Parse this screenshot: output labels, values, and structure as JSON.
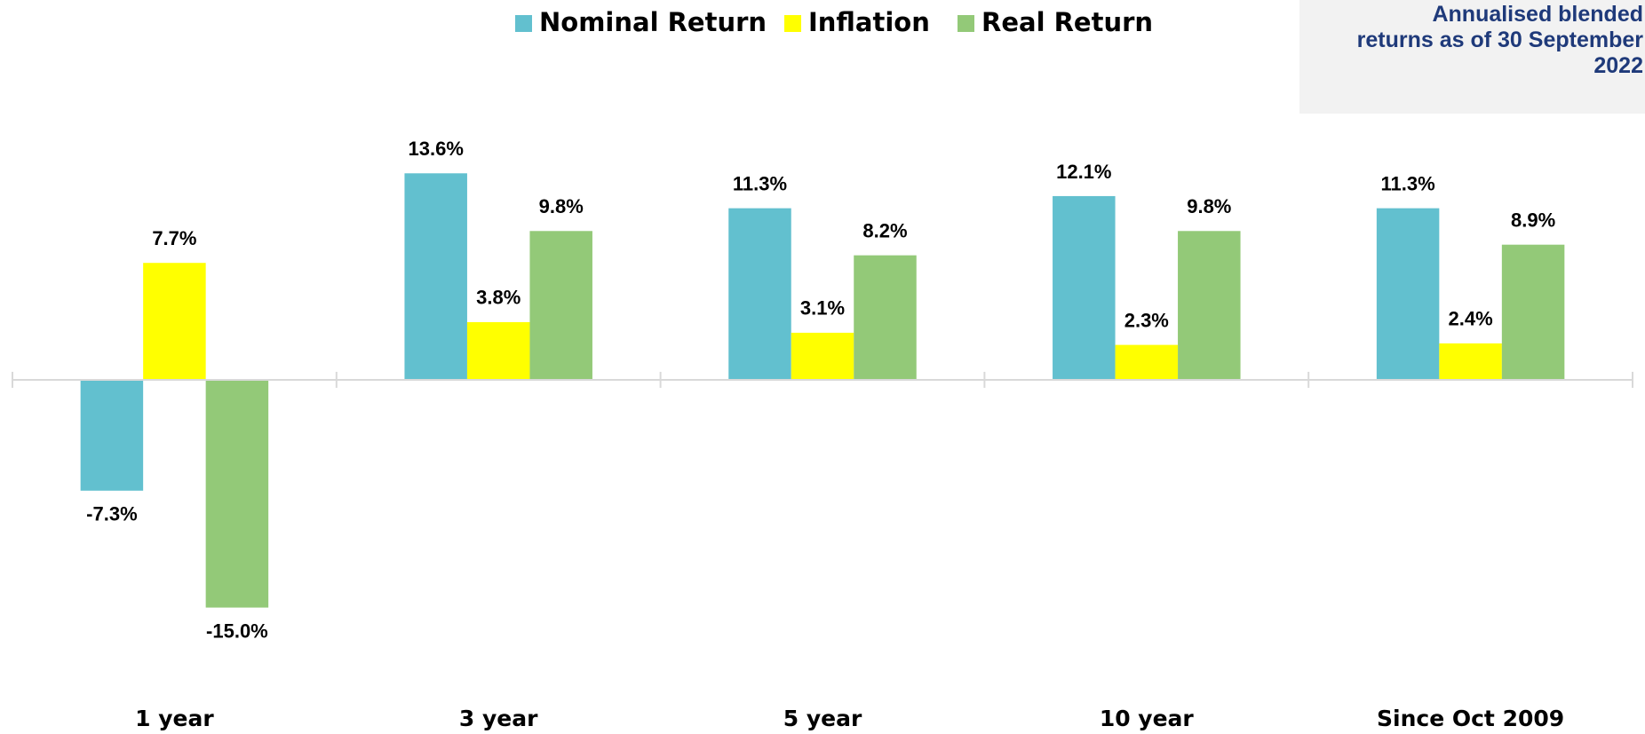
{
  "chart_data": {
    "type": "bar",
    "note": [
      "Annualised blended",
      "returns as of 30 September",
      "2022"
    ],
    "categories": [
      "1 year",
      "3 year",
      "5 year",
      "10 year",
      "Since Oct 2009"
    ],
    "series": [
      {
        "name": "Nominal Return",
        "color": "#62c0cf",
        "values": [
          -7.3,
          13.6,
          11.3,
          12.1,
          11.3
        ],
        "value_labels": [
          "-7.3%",
          "13.6%",
          "11.3%",
          "12.1%",
          "11.3%"
        ]
      },
      {
        "name": "Inflation",
        "color": "#ffff00",
        "values": [
          7.7,
          3.8,
          3.1,
          2.3,
          2.4
        ],
        "value_labels": [
          "7.7%",
          "3.8%",
          "3.1%",
          "2.3%",
          "2.4%"
        ]
      },
      {
        "name": "Real Return",
        "color": "#93c978",
        "values": [
          -15.0,
          9.8,
          8.2,
          9.8,
          8.9
        ],
        "value_labels": [
          "-15.0%",
          "9.8%",
          "8.2%",
          "9.8%",
          "8.9%"
        ]
      }
    ],
    "ylim": [
      -19,
      18
    ]
  }
}
